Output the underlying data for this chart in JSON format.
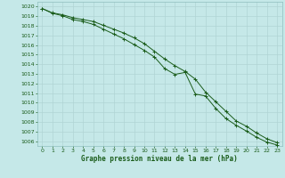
{
  "title": "Graphe pression niveau de la mer (hPa)",
  "background_color": "#c5e8e8",
  "grid_color": "#b0d4d4",
  "line_color": "#1a5c1a",
  "marker_color": "#1a5c1a",
  "xlim": [
    -0.5,
    23.5
  ],
  "ylim": [
    1005.5,
    1020.5
  ],
  "yticks": [
    1006,
    1007,
    1008,
    1009,
    1010,
    1011,
    1012,
    1013,
    1014,
    1015,
    1016,
    1017,
    1018,
    1019,
    1020
  ],
  "xticks": [
    0,
    1,
    2,
    3,
    4,
    5,
    6,
    7,
    8,
    9,
    10,
    11,
    12,
    13,
    14,
    15,
    16,
    17,
    18,
    19,
    20,
    21,
    22,
    23
  ],
  "line1_x": [
    0,
    1,
    2,
    3,
    4,
    5,
    6,
    7,
    8,
    9,
    10,
    11,
    12,
    13,
    14,
    15,
    16,
    17,
    18,
    19,
    20,
    21,
    22,
    23
  ],
  "line1_y": [
    1019.8,
    1019.3,
    1019.05,
    1018.65,
    1018.45,
    1018.15,
    1017.65,
    1017.15,
    1016.65,
    1016.05,
    1015.45,
    1014.75,
    1013.55,
    1012.95,
    1013.15,
    1010.9,
    1010.7,
    1009.4,
    1008.35,
    1007.65,
    1007.05,
    1006.4,
    1005.9,
    1005.6
  ],
  "line2_x": [
    0,
    1,
    2,
    3,
    4,
    5,
    6,
    7,
    8,
    9,
    10,
    11,
    12,
    13,
    14,
    15,
    16,
    17,
    18,
    19,
    20,
    21,
    22,
    23
  ],
  "line2_y": [
    1019.8,
    1019.35,
    1019.15,
    1018.85,
    1018.65,
    1018.45,
    1018.05,
    1017.65,
    1017.25,
    1016.75,
    1016.15,
    1015.35,
    1014.55,
    1013.85,
    1013.25,
    1012.45,
    1011.1,
    1010.1,
    1009.1,
    1008.1,
    1007.55,
    1006.85,
    1006.25,
    1005.85
  ],
  "title_fontsize": 5.5,
  "tick_fontsize": 4.5,
  "tick_color": "#1a5c1a",
  "spine_color": "#8fbfbf"
}
